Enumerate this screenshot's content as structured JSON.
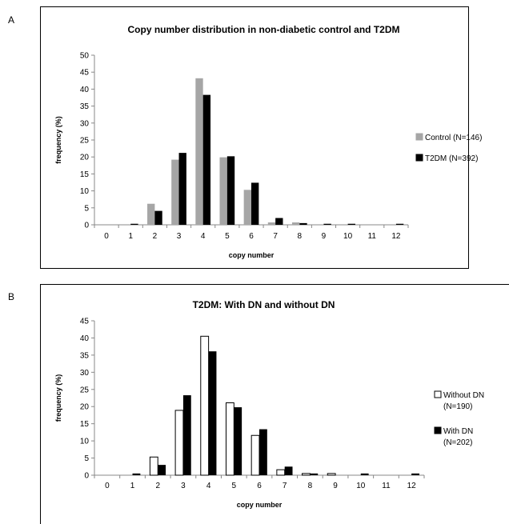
{
  "chart_data": [
    {
      "panel_label": "A",
      "type": "bar",
      "title": "Copy number distribution in non-diabetic control and T2DM",
      "xlabel": "copy number",
      "ylabel": "frequency (%)",
      "categories": [
        "0",
        "1",
        "2",
        "3",
        "4",
        "5",
        "6",
        "7",
        "8",
        "9",
        "10",
        "11",
        "12"
      ],
      "ylim": [
        0,
        50
      ],
      "yticks": [
        0,
        5,
        10,
        15,
        20,
        25,
        30,
        35,
        40,
        45,
        50
      ],
      "legend_position": "right",
      "grid": false,
      "series": [
        {
          "name": "Control (N=146)",
          "color": "#a6a6a6",
          "stroke": "#a6a6a6",
          "values": [
            0,
            0,
            6.2,
            19.2,
            43.2,
            19.9,
            10.3,
            0.7,
            0.7,
            0,
            0,
            0,
            0
          ]
        },
        {
          "name": "T2DM (N=392)",
          "color": "#000000",
          "stroke": "#000000",
          "values": [
            0,
            0.3,
            4.1,
            21.2,
            38.3,
            20.2,
            12.4,
            2.0,
            0.5,
            0.3,
            0.3,
            0,
            0.3
          ]
        }
      ]
    },
    {
      "panel_label": "B",
      "type": "bar",
      "title": "T2DM: With DN and without DN",
      "xlabel": "copy number",
      "ylabel": "frequency (%)",
      "categories": [
        "0",
        "1",
        "2",
        "3",
        "4",
        "5",
        "6",
        "7",
        "8",
        "9",
        "10",
        "11",
        "12"
      ],
      "ylim": [
        0,
        45
      ],
      "yticks": [
        0,
        5,
        10,
        15,
        20,
        25,
        30,
        35,
        40,
        45
      ],
      "legend_position": "right",
      "grid": false,
      "series": [
        {
          "name": "Without DN (N=190)",
          "legend_lines": [
            "Without DN",
            "(N=190)"
          ],
          "color": "#ffffff",
          "stroke": "#000000",
          "values": [
            0,
            0,
            5.3,
            18.9,
            40.5,
            21.1,
            11.6,
            1.6,
            0.5,
            0.5,
            0,
            0,
            0
          ]
        },
        {
          "name": "With DN (N=202)",
          "legend_lines": [
            "With DN",
            "(N=202)"
          ],
          "color": "#000000",
          "stroke": "#000000",
          "values": [
            0,
            0.5,
            3.0,
            23.3,
            36.1,
            19.8,
            13.4,
            2.5,
            0.5,
            0,
            0.5,
            0,
            0.5
          ]
        }
      ]
    }
  ]
}
